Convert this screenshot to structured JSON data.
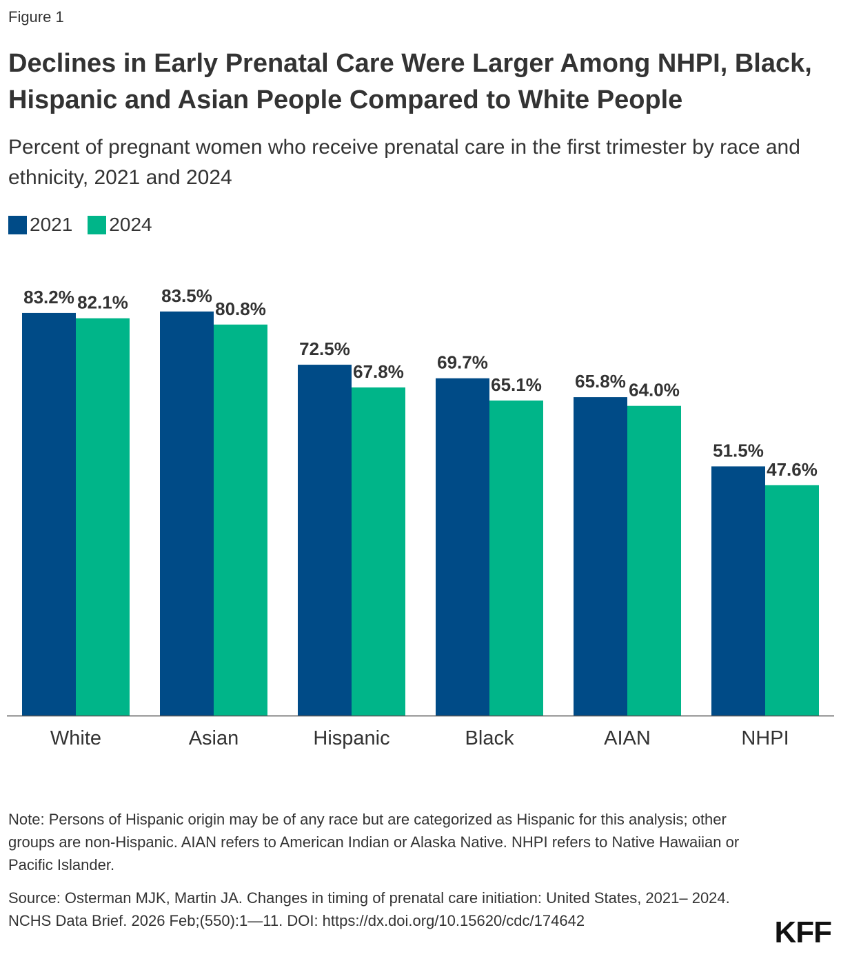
{
  "figure_label": "Figure 1",
  "title": "Declines in Early Prenatal Care Were Larger Among NHPI, Black, Hispanic and Asian People Compared to White People",
  "subtitle": "Percent of pregnant women who receive prenatal care in the first trimester by race and ethnicity, 2021 and 2024",
  "colors": {
    "series_2021": "#004B87",
    "series_2024": "#00B589",
    "axis": "#555555"
  },
  "chart_data": {
    "type": "bar",
    "categories": [
      "White",
      "Asian",
      "Hispanic",
      "Black",
      "AIAN",
      "NHPI"
    ],
    "series": [
      {
        "name": "2021",
        "values": [
          83.2,
          83.5,
          72.5,
          69.7,
          65.8,
          51.5
        ],
        "labels": [
          "83.2%",
          "83.5%",
          "72.5%",
          "69.7%",
          "65.8%",
          "51.5%"
        ]
      },
      {
        "name": "2024",
        "values": [
          82.1,
          80.8,
          67.8,
          65.1,
          64.0,
          47.6
        ],
        "labels": [
          "82.1%",
          "80.8%",
          "67.8%",
          "65.1%",
          "64.0%",
          "47.6%"
        ]
      }
    ],
    "ylim": [
      0,
      100
    ],
    "grid": false,
    "legend_position": "top-left"
  },
  "note": "Note: Persons of Hispanic origin may be of any race but are categorized as Hispanic for this analysis; other groups are non-Hispanic. AIAN refers to American Indian or Alaska Native. NHPI refers to Native Hawaiian or Pacific Islander.",
  "source": "Source: Osterman MJK, Martin JA. Changes in timing of prenatal care initiation: United States, 2021– 2024. NCHS Data Brief. 2026 Feb;(550):1—11. DOI: https://dx.doi.org/10.15620/cdc/174642",
  "logo_text": "KFF"
}
